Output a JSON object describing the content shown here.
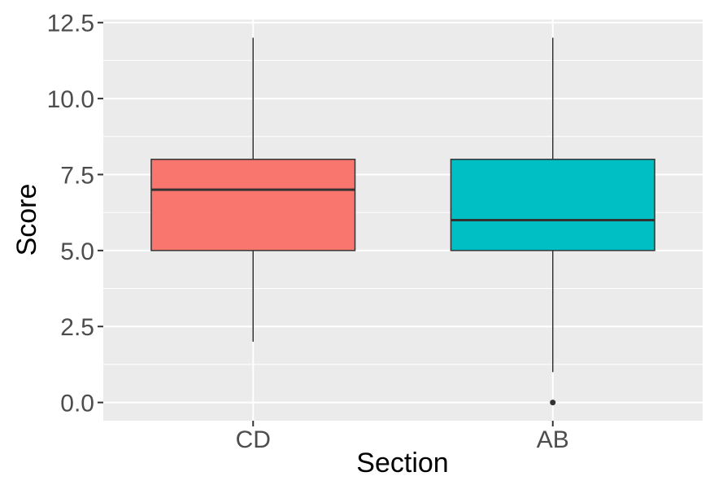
{
  "chart_data": {
    "type": "boxplot",
    "xlabel": "Section",
    "ylabel": "Score",
    "ylim": [
      -0.6,
      12.6
    ],
    "yticks": [
      0.0,
      2.5,
      5.0,
      7.5,
      10.0,
      12.5
    ],
    "ytick_labels": [
      "0.0",
      "2.5",
      "5.0",
      "7.5",
      "10.0",
      "12.5"
    ],
    "categories": [
      "CD",
      "AB"
    ],
    "boxes": [
      {
        "category": "CD",
        "min": 2,
        "q1": 5,
        "median": 7,
        "q3": 8,
        "max": 12,
        "outliers": [],
        "color": "#F8766D"
      },
      {
        "category": "AB",
        "min": 1,
        "q1": 5,
        "median": 6,
        "q3": 8,
        "max": 12,
        "outliers": [
          0
        ],
        "color": "#00BFC4"
      }
    ],
    "panel_background": "#EBEBEB",
    "grid_color": "#FFFFFF",
    "grid": true,
    "legend": "none"
  }
}
